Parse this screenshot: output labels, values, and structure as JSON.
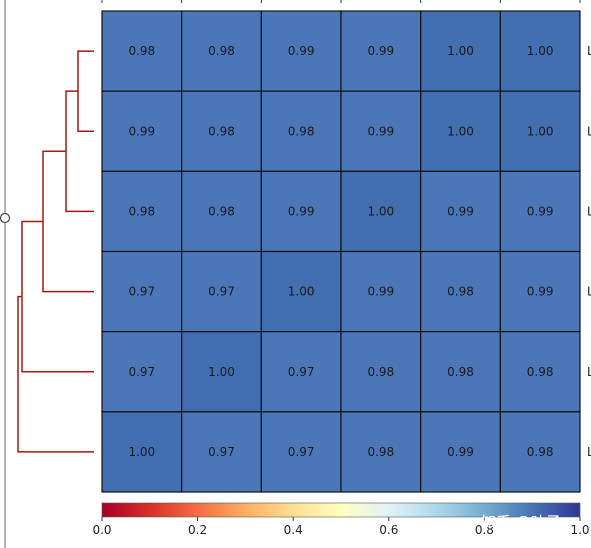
{
  "chart_data": {
    "type": "heatmap",
    "title": "",
    "xlabel": "",
    "ylabel": "",
    "values": [
      [
        0.98,
        0.98,
        0.99,
        0.99,
        1.0,
        1.0
      ],
      [
        0.99,
        0.98,
        0.98,
        0.99,
        1.0,
        1.0
      ],
      [
        0.98,
        0.98,
        0.99,
        1.0,
        0.99,
        0.99
      ],
      [
        0.97,
        0.97,
        1.0,
        0.99,
        0.98,
        0.99
      ],
      [
        0.97,
        1.0,
        0.97,
        0.98,
        0.98,
        0.98
      ],
      [
        1.0,
        0.97,
        0.97,
        0.98,
        0.99,
        0.98
      ]
    ],
    "value_labels": [
      [
        "0.98",
        "0.98",
        "0.99",
        "0.99",
        "1.00",
        "1.00"
      ],
      [
        "0.99",
        "0.98",
        "0.98",
        "0.99",
        "1.00",
        "1.00"
      ],
      [
        "0.98",
        "0.98",
        "0.99",
        "1.00",
        "0.99",
        "0.99"
      ],
      [
        "0.97",
        "0.97",
        "1.00",
        "0.99",
        "0.98",
        "0.99"
      ],
      [
        "0.97",
        "1.00",
        "0.97",
        "0.98",
        "0.98",
        "0.98"
      ],
      [
        "1.00",
        "0.97",
        "0.97",
        "0.98",
        "0.99",
        "0.98"
      ]
    ],
    "row_labels": [
      "L",
      "L",
      "L",
      "L",
      "L",
      "L"
    ],
    "colorbar": {
      "colormap": "RdYlBu",
      "range": [
        0.0,
        1.0
      ],
      "ticks": [
        0.0,
        0.2,
        0.4,
        0.6,
        0.8,
        1.0
      ],
      "tick_labels": [
        "0.0",
        "0.2",
        "0.4",
        "0.6",
        "0.8",
        "1.0"
      ],
      "orientation": "horizontal",
      "placement": "bottom"
    },
    "dendrogram": {
      "side": "left",
      "color": "#a31a10",
      "leaf_order": [
        0,
        1,
        2,
        3,
        4,
        5
      ]
    },
    "colors": {
      "cell_fill": "#4b77b8",
      "cell_fill_diagonal": "#426fb1",
      "cell_border": "#111111"
    }
  },
  "watermark": "知乎 @叶子"
}
